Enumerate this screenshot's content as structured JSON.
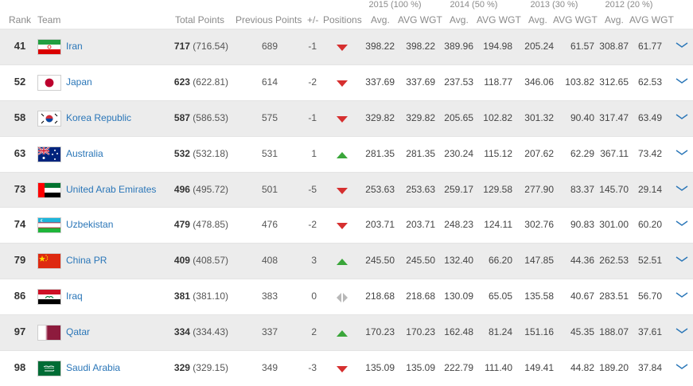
{
  "year_headers": [
    "2015 (100 %)",
    "2014 (50 %)",
    "2013 (30 %)",
    "2012 (20 %)"
  ],
  "columns": {
    "rank": "Rank",
    "team": "Team",
    "total_points": "Total Points",
    "previous_points": "Previous Points",
    "diff": "+/-",
    "positions": "Positions",
    "avg": "Avg.",
    "avg_wgt": "AVG WGT"
  },
  "colors": {
    "link": "#2a76b8",
    "down": "#d62f2f",
    "up": "#3aa63a",
    "same": "#b8b8b8",
    "row_shade": "#ececec"
  },
  "rows": [
    {
      "rank": "41",
      "team": "Iran",
      "flag": "iran-flag-icon",
      "points": "717",
      "points_exact": "(716.54)",
      "prev": "689",
      "diff": "-1",
      "trend": "down",
      "y2015_avg": "398.22",
      "y2015_wgt": "398.22",
      "y2014_avg": "389.96",
      "y2014_wgt": "194.98",
      "y2013_avg": "205.24",
      "y2013_wgt": "61.57",
      "y2012_avg": "308.87",
      "y2012_wgt": "61.77"
    },
    {
      "rank": "52",
      "team": "Japan",
      "flag": "japan-flag-icon",
      "points": "623",
      "points_exact": "(622.81)",
      "prev": "614",
      "diff": "-2",
      "trend": "down",
      "y2015_avg": "337.69",
      "y2015_wgt": "337.69",
      "y2014_avg": "237.53",
      "y2014_wgt": "118.77",
      "y2013_avg": "346.06",
      "y2013_wgt": "103.82",
      "y2012_avg": "312.65",
      "y2012_wgt": "62.53"
    },
    {
      "rank": "58",
      "team": "Korea Republic",
      "flag": "korea-flag-icon",
      "points": "587",
      "points_exact": "(586.53)",
      "prev": "575",
      "diff": "-1",
      "trend": "down",
      "y2015_avg": "329.82",
      "y2015_wgt": "329.82",
      "y2014_avg": "205.65",
      "y2014_wgt": "102.82",
      "y2013_avg": "301.32",
      "y2013_wgt": "90.40",
      "y2012_avg": "317.47",
      "y2012_wgt": "63.49"
    },
    {
      "rank": "63",
      "team": "Australia",
      "flag": "australia-flag-icon",
      "points": "532",
      "points_exact": "(532.18)",
      "prev": "531",
      "diff": "1",
      "trend": "up",
      "y2015_avg": "281.35",
      "y2015_wgt": "281.35",
      "y2014_avg": "230.24",
      "y2014_wgt": "115.12",
      "y2013_avg": "207.62",
      "y2013_wgt": "62.29",
      "y2012_avg": "367.11",
      "y2012_wgt": "73.42"
    },
    {
      "rank": "73",
      "team": "United Arab Emirates",
      "flag": "uae-flag-icon",
      "points": "496",
      "points_exact": "(495.72)",
      "prev": "501",
      "diff": "-5",
      "trend": "down",
      "y2015_avg": "253.63",
      "y2015_wgt": "253.63",
      "y2014_avg": "259.17",
      "y2014_wgt": "129.58",
      "y2013_avg": "277.90",
      "y2013_wgt": "83.37",
      "y2012_avg": "145.70",
      "y2012_wgt": "29.14"
    },
    {
      "rank": "74",
      "team": "Uzbekistan",
      "flag": "uzbekistan-flag-icon",
      "points": "479",
      "points_exact": "(478.85)",
      "prev": "476",
      "diff": "-2",
      "trend": "down",
      "y2015_avg": "203.71",
      "y2015_wgt": "203.71",
      "y2014_avg": "248.23",
      "y2014_wgt": "124.11",
      "y2013_avg": "302.76",
      "y2013_wgt": "90.83",
      "y2012_avg": "301.00",
      "y2012_wgt": "60.20"
    },
    {
      "rank": "79",
      "team": "China PR",
      "flag": "china-flag-icon",
      "points": "409",
      "points_exact": "(408.57)",
      "prev": "408",
      "diff": "3",
      "trend": "up",
      "y2015_avg": "245.50",
      "y2015_wgt": "245.50",
      "y2014_avg": "132.40",
      "y2014_wgt": "66.20",
      "y2013_avg": "147.85",
      "y2013_wgt": "44.36",
      "y2012_avg": "262.53",
      "y2012_wgt": "52.51"
    },
    {
      "rank": "86",
      "team": "Iraq",
      "flag": "iraq-flag-icon",
      "points": "381",
      "points_exact": "(381.10)",
      "prev": "383",
      "diff": "0",
      "trend": "same",
      "y2015_avg": "218.68",
      "y2015_wgt": "218.68",
      "y2014_avg": "130.09",
      "y2014_wgt": "65.05",
      "y2013_avg": "135.58",
      "y2013_wgt": "40.67",
      "y2012_avg": "283.51",
      "y2012_wgt": "56.70"
    },
    {
      "rank": "97",
      "team": "Qatar",
      "flag": "qatar-flag-icon",
      "points": "334",
      "points_exact": "(334.43)",
      "prev": "337",
      "diff": "2",
      "trend": "up",
      "y2015_avg": "170.23",
      "y2015_wgt": "170.23",
      "y2014_avg": "162.48",
      "y2014_wgt": "81.24",
      "y2013_avg": "151.16",
      "y2013_wgt": "45.35",
      "y2012_avg": "188.07",
      "y2012_wgt": "37.61"
    },
    {
      "rank": "98",
      "team": "Saudi Arabia",
      "flag": "saudi-arabia-flag-icon",
      "points": "329",
      "points_exact": "(329.15)",
      "prev": "349",
      "diff": "-3",
      "trend": "down",
      "y2015_avg": "135.09",
      "y2015_wgt": "135.09",
      "y2014_avg": "222.79",
      "y2014_wgt": "111.40",
      "y2013_avg": "149.41",
      "y2013_wgt": "44.82",
      "y2012_avg": "189.20",
      "y2012_wgt": "37.84"
    }
  ]
}
